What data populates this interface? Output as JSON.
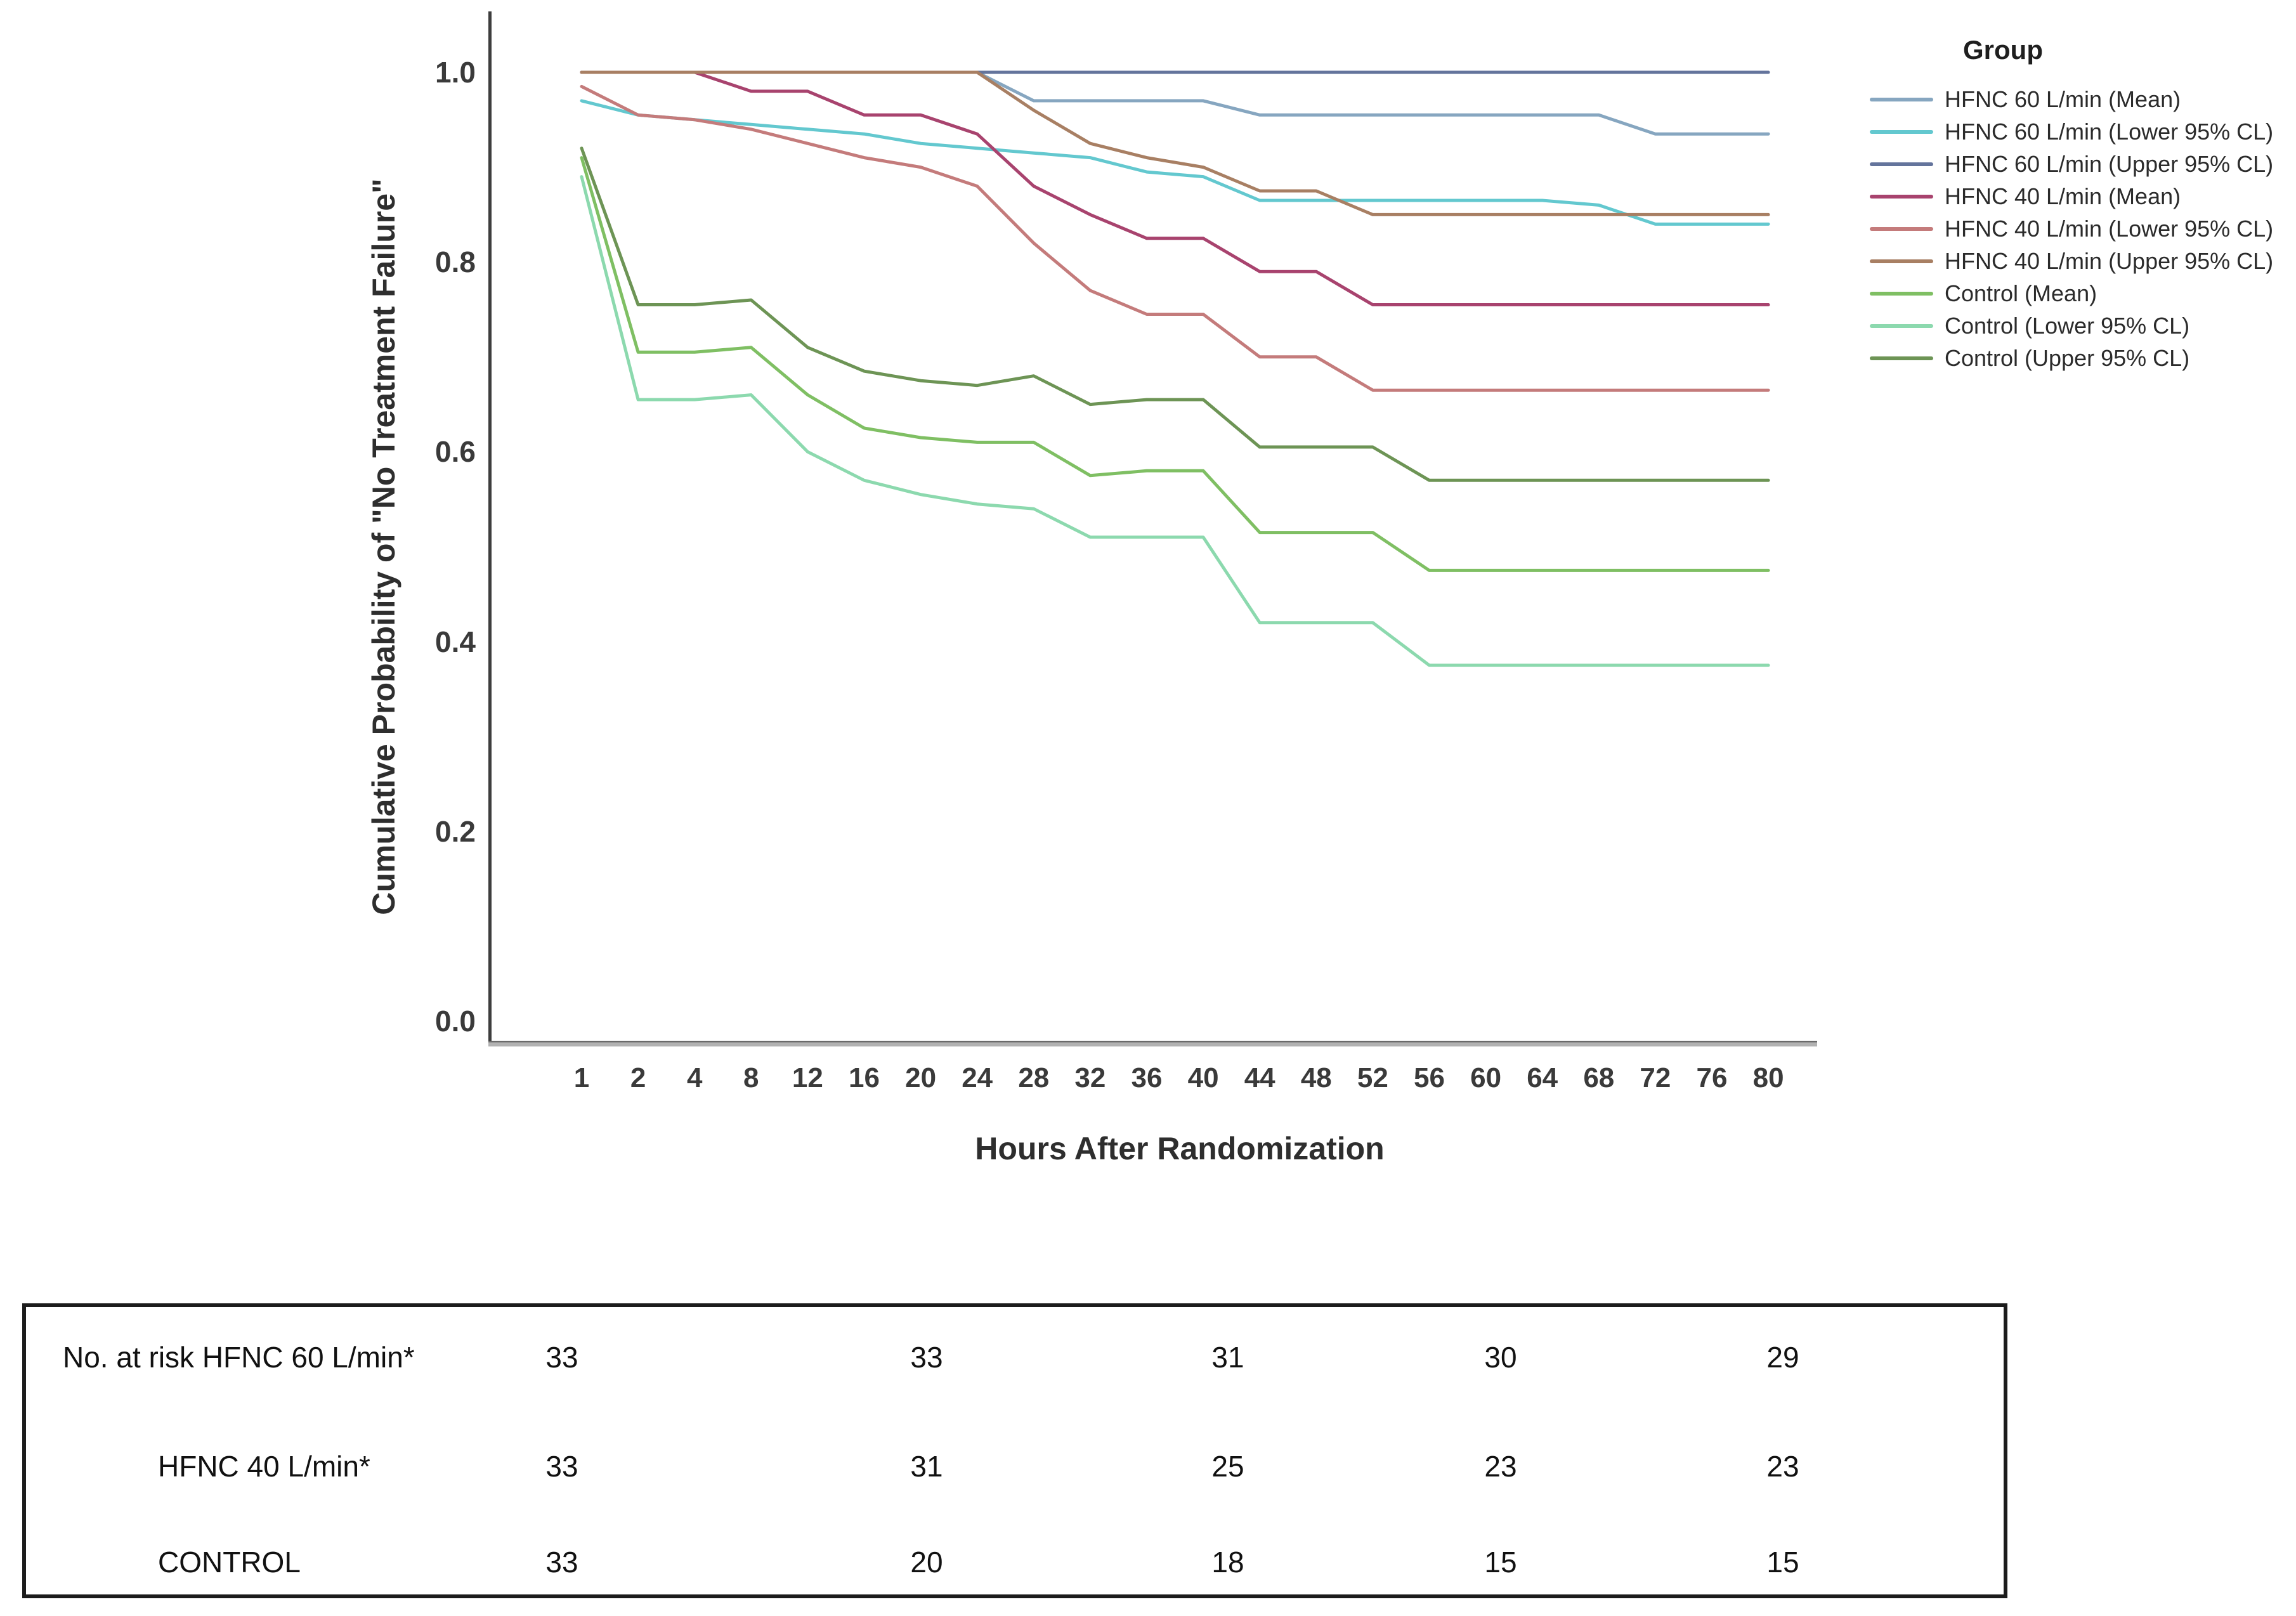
{
  "figure": {
    "y_axis": {
      "title": "Cumulative Probability of \"No Treatment Failure\"",
      "ticks": [
        "1.0",
        "0.8",
        "0.6",
        "0.4",
        "0.2",
        "0.0"
      ]
    },
    "x_axis": {
      "title": "Hours After Randomization",
      "ticks": [
        "1",
        "2",
        "4",
        "8",
        "12",
        "16",
        "20",
        "24",
        "28",
        "32",
        "36",
        "40",
        "44",
        "48",
        "52",
        "56",
        "60",
        "64",
        "68",
        "72",
        "76",
        "80"
      ]
    }
  },
  "legend": {
    "title": "Group"
  },
  "chart_data": {
    "type": "line",
    "title": "",
    "xlabel": "Hours After Randomization",
    "ylabel": "Cumulative Probability of \"No Treatment Failure\"",
    "ylim": [
      0.0,
      1.0
    ],
    "grid": false,
    "legend_position": "right",
    "x": [
      1,
      2,
      4,
      8,
      12,
      16,
      20,
      24,
      28,
      32,
      36,
      40,
      44,
      48,
      52,
      56,
      60,
      64,
      68,
      72,
      76,
      80
    ],
    "series": [
      {
        "name": "HFNC 60 L/min (Mean)",
        "color": "#86a6c0",
        "values": [
          1.0,
          1.0,
          1.0,
          1.0,
          1.0,
          1.0,
          1.0,
          1.0,
          0.97,
          0.97,
          0.97,
          0.97,
          0.955,
          0.955,
          0.955,
          0.955,
          0.955,
          0.955,
          0.955,
          0.935,
          0.935,
          0.935
        ]
      },
      {
        "name": "HFNC 60 L/min (Lower 95% CL)",
        "color": "#63c8cf",
        "values": [
          0.97,
          0.955,
          0.95,
          0.945,
          0.94,
          0.935,
          0.925,
          0.92,
          0.915,
          0.91,
          0.895,
          0.89,
          0.865,
          0.865,
          0.865,
          0.865,
          0.865,
          0.865,
          0.86,
          0.84,
          0.84,
          0.84
        ]
      },
      {
        "name": "HFNC 60 L/min (Upper 95% CL)",
        "color": "#64749c",
        "values": [
          1.0,
          1.0,
          1.0,
          1.0,
          1.0,
          1.0,
          1.0,
          1.0,
          1.0,
          1.0,
          1.0,
          1.0,
          1.0,
          1.0,
          1.0,
          1.0,
          1.0,
          1.0,
          1.0,
          1.0,
          1.0,
          1.0
        ]
      },
      {
        "name": "HFNC 40 L/min (Mean)",
        "color": "#a8436e",
        "values": [
          1.0,
          1.0,
          1.0,
          0.98,
          0.98,
          0.955,
          0.955,
          0.935,
          0.88,
          0.85,
          0.825,
          0.825,
          0.79,
          0.79,
          0.755,
          0.755,
          0.755,
          0.755,
          0.755,
          0.755,
          0.755,
          0.755
        ]
      },
      {
        "name": "HFNC 40 L/min (Lower 95% CL)",
        "color": "#c47b7b",
        "values": [
          0.985,
          0.955,
          0.95,
          0.94,
          0.925,
          0.91,
          0.9,
          0.88,
          0.82,
          0.77,
          0.745,
          0.745,
          0.7,
          0.7,
          0.665,
          0.665,
          0.665,
          0.665,
          0.665,
          0.665,
          0.665,
          0.665
        ]
      },
      {
        "name": "HFNC 40 L/min (Upper 95% CL)",
        "color": "#a87f63",
        "values": [
          1.0,
          1.0,
          1.0,
          1.0,
          1.0,
          1.0,
          1.0,
          1.0,
          0.96,
          0.925,
          0.91,
          0.9,
          0.875,
          0.875,
          0.85,
          0.85,
          0.85,
          0.85,
          0.85,
          0.85,
          0.85,
          0.85
        ]
      },
      {
        "name": "Control (Mean)",
        "color": "#7fbf63",
        "values": [
          0.91,
          0.705,
          0.705,
          0.71,
          0.66,
          0.625,
          0.615,
          0.61,
          0.61,
          0.575,
          0.58,
          0.58,
          0.515,
          0.515,
          0.515,
          0.475,
          0.475,
          0.475,
          0.475,
          0.475,
          0.475,
          0.475
        ]
      },
      {
        "name": "Control (Lower 95% CL)",
        "color": "#8cd9ae",
        "values": [
          0.89,
          0.655,
          0.655,
          0.66,
          0.6,
          0.57,
          0.555,
          0.545,
          0.54,
          0.51,
          0.51,
          0.51,
          0.42,
          0.42,
          0.42,
          0.375,
          0.375,
          0.375,
          0.375,
          0.375,
          0.375,
          0.375
        ]
      },
      {
        "name": "Control (Upper 95% CL)",
        "color": "#6d9455",
        "values": [
          0.92,
          0.755,
          0.755,
          0.76,
          0.71,
          0.685,
          0.675,
          0.67,
          0.68,
          0.65,
          0.655,
          0.655,
          0.605,
          0.605,
          0.605,
          0.57,
          0.57,
          0.57,
          0.57,
          0.57,
          0.57,
          0.57
        ]
      }
    ]
  },
  "risk_table": {
    "rows": [
      {
        "label": "No. at risk HFNC 60 L/min*",
        "values": [
          "33",
          "33",
          "31",
          "30",
          "29"
        ]
      },
      {
        "label": "HFNC 40 L/min*",
        "values": [
          "33",
          "31",
          "25",
          "23",
          "23"
        ]
      },
      {
        "label": "CONTROL",
        "values": [
          "33",
          "20",
          "18",
          "15",
          "15"
        ]
      }
    ]
  }
}
